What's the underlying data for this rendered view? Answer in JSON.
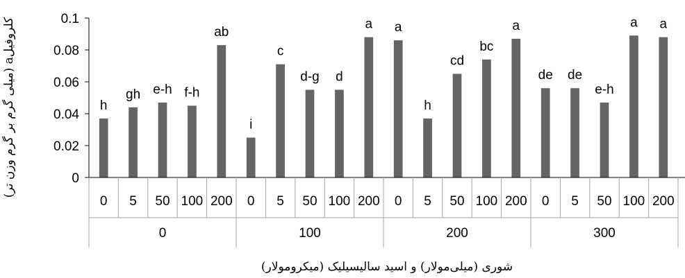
{
  "chart_data": {
    "type": "bar",
    "ylabel": "کلروفیلa (میلی گرم بر گرم وزن تر)",
    "xlabel": "شوری (میلی‌مولار) و اسید سالیسیلیک (میکرومولار)",
    "ylim": [
      0,
      0.1
    ],
    "yticks": [
      "0",
      "0.02",
      "0.04",
      "0.06",
      "0.08",
      "0.1"
    ],
    "grid": false,
    "bar_color": "#646464",
    "groups": [
      {
        "label": "0",
        "categories": [
          "0",
          "5",
          "50",
          "100",
          "200"
        ],
        "values": [
          0.037,
          0.044,
          0.047,
          0.045,
          0.083
        ],
        "letters": [
          "h",
          "gh",
          "e-h",
          "f-h",
          "ab"
        ]
      },
      {
        "label": "100",
        "categories": [
          "0",
          "5",
          "50",
          "100",
          "200"
        ],
        "values": [
          0.025,
          0.071,
          0.055,
          0.055,
          0.088
        ],
        "letters": [
          "i",
          "c",
          "d-g",
          "d",
          "a"
        ]
      },
      {
        "label": "200",
        "categories": [
          "0",
          "5",
          "50",
          "100",
          "200"
        ],
        "values": [
          0.086,
          0.037,
          0.065,
          0.074,
          0.087
        ],
        "letters": [
          "a",
          "h",
          "cd",
          "bc",
          "a"
        ]
      },
      {
        "label": "300",
        "categories": [
          "0",
          "5",
          "50",
          "100",
          "200"
        ],
        "values": [
          0.056,
          0.056,
          0.047,
          0.089,
          0.088
        ],
        "letters": [
          "de",
          "de",
          "e-h",
          "a",
          "a"
        ]
      }
    ]
  }
}
